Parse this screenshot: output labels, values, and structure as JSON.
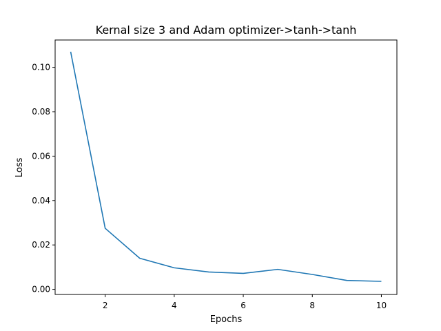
{
  "chart_data": {
    "type": "line",
    "title": "Kernal size 3 and Adam optimizer->tanh->tanh",
    "xlabel": "Epochs",
    "ylabel": "Loss",
    "xlim": [
      0.55,
      10.45
    ],
    "ylim": [
      -0.0023,
      0.1123
    ],
    "xticks": [
      2,
      4,
      6,
      8,
      10
    ],
    "xtick_labels": [
      "2",
      "4",
      "6",
      "8",
      "10"
    ],
    "yticks": [
      0.0,
      0.02,
      0.04,
      0.06,
      0.08,
      0.1
    ],
    "ytick_labels": [
      "0.00",
      "0.02",
      "0.04",
      "0.06",
      "0.08",
      "0.10"
    ],
    "grid": false,
    "series": [
      {
        "color": "#1f77b4",
        "x": [
          1,
          2,
          3,
          4,
          5,
          6,
          7,
          8,
          9,
          10
        ],
        "values": [
          0.107,
          0.0275,
          0.014,
          0.0097,
          0.0078,
          0.0072,
          0.009,
          0.0067,
          0.004,
          0.0036
        ]
      }
    ]
  }
}
